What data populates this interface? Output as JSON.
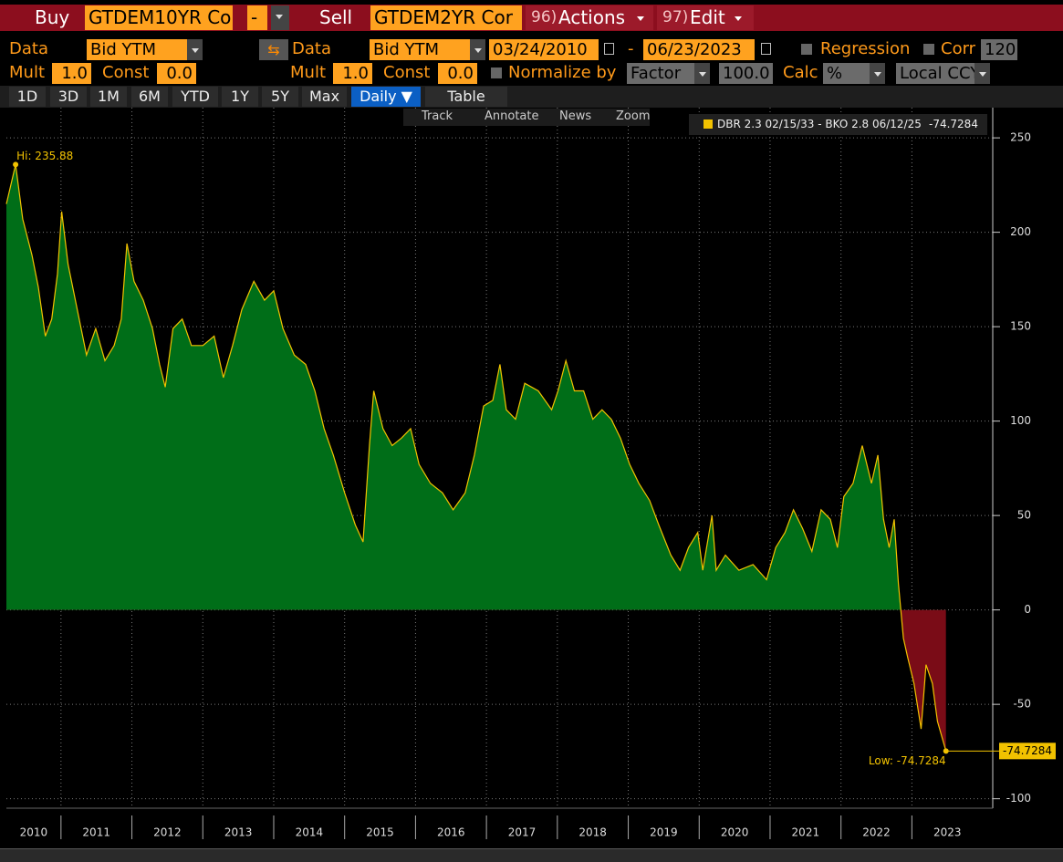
{
  "toolbar": {
    "buy": "Buy",
    "buy_ticker": "GTDEM10YR Co",
    "op": "-",
    "sell": "Sell",
    "sell_ticker": "GTDEM2YR Cor",
    "actions_num": "96)",
    "actions": "Actions",
    "edit_num": "97)",
    "edit": "Edit"
  },
  "row2": {
    "data1": "Data",
    "field1": "Bid YTM",
    "data2": "Data",
    "field2": "Bid YTM",
    "start": "03/24/2010",
    "dash": "-",
    "end": "06/23/2023",
    "regression": "Regression",
    "corr": "Corr",
    "corr_window": "120"
  },
  "row3": {
    "mult1": "Mult",
    "mult1_value": "1.0",
    "const1": "Const",
    "const1_value": "0.0",
    "mult2": "Mult",
    "mult2_value": "1.0",
    "const2": "Const",
    "const2_value": "0.0",
    "normalize": "Normalize by",
    "factor": "Factor",
    "factor_value": "100.0",
    "calc": "Calc",
    "calc_value": "%",
    "ccy": "Local CCY"
  },
  "tabs": [
    "1D",
    "3D",
    "1M",
    "6M",
    "YTD",
    "1Y",
    "5Y",
    "Max",
    "Daily ▼",
    "Table"
  ],
  "chart_tools": [
    "Track",
    "Annotate",
    "News",
    "Zoom"
  ],
  "chart_data": {
    "type": "area",
    "x": [
      2010.23,
      2010.36,
      2010.46,
      2010.59,
      2010.68,
      2010.78,
      2010.87,
      2010.95,
      2011.01,
      2011.1,
      2011.23,
      2011.36,
      2011.49,
      2011.62,
      2011.75,
      2011.85,
      2011.93,
      2012.03,
      2012.16,
      2012.29,
      2012.39,
      2012.47,
      2012.58,
      2012.71,
      2012.84,
      2013.0,
      2013.16,
      2013.29,
      2013.42,
      2013.55,
      2013.72,
      2013.87,
      2014.0,
      2014.13,
      2014.29,
      2014.45,
      2014.58,
      2014.71,
      2014.84,
      2015.0,
      2015.15,
      2015.26,
      2015.35,
      2015.41,
      2015.54,
      2015.67,
      2015.8,
      2015.93,
      2016.05,
      2016.21,
      2016.38,
      2016.53,
      2016.7,
      2016.83,
      2016.96,
      2017.09,
      2017.19,
      2017.28,
      2017.41,
      2017.54,
      2017.73,
      2017.92,
      2018.01,
      2018.12,
      2018.24,
      2018.37,
      2018.5,
      2018.63,
      2018.76,
      2018.89,
      2019.02,
      2019.15,
      2019.3,
      2019.43,
      2019.6,
      2019.73,
      2019.85,
      2019.98,
      2020.05,
      2020.18,
      2020.24,
      2020.37,
      2020.56,
      2020.76,
      2020.95,
      2021.08,
      2021.21,
      2021.33,
      2021.46,
      2021.59,
      2021.72,
      2021.85,
      2021.95,
      2022.04,
      2022.17,
      2022.3,
      2022.43,
      2022.52,
      2022.6,
      2022.68,
      2022.75,
      2022.81,
      2022.88,
      2022.94,
      2023.03,
      2023.13,
      2023.2,
      2023.29,
      2023.36,
      2023.48
    ],
    "series": [
      {
        "name": "DBR 2.3 02/15/33 - BKO 2.8 06/12/25",
        "color": "#f2c200",
        "values": [
          215,
          235.88,
          207,
          188,
          171,
          145,
          154,
          178,
          211,
          183,
          159,
          135,
          149,
          132,
          140,
          154,
          194,
          174,
          164,
          149,
          130,
          118,
          149,
          154,
          140,
          140,
          145,
          123,
          140,
          159,
          174,
          164,
          169,
          149,
          135,
          130,
          116,
          96,
          82,
          62,
          45,
          36,
          87,
          116,
          96,
          87,
          91,
          96,
          77,
          67,
          62,
          53,
          62,
          82,
          108,
          111,
          130,
          106,
          101,
          120,
          116,
          106,
          116,
          132,
          116,
          116,
          101,
          106,
          101,
          91,
          77,
          67,
          58,
          45,
          29,
          21,
          33,
          41,
          21,
          50,
          21,
          29,
          21,
          24,
          16,
          33,
          41,
          53,
          43,
          31,
          53,
          48,
          33,
          60,
          67,
          87,
          67,
          82,
          48,
          33,
          48,
          14,
          -15,
          -25,
          -39,
          -63,
          -29,
          -39,
          -59,
          -74.7284
        ]
      }
    ],
    "fill_above": "#006e18",
    "fill_below": "#7a0c17",
    "xlim": [
      2010.23,
      2024.14
    ],
    "xticks": [
      2010,
      2011,
      2012,
      2013,
      2014,
      2015,
      2016,
      2017,
      2018,
      2019,
      2020,
      2021,
      2022,
      2023
    ],
    "ylim": [
      -105,
      266
    ],
    "yticks": [
      -100,
      -50,
      0,
      50,
      100,
      150,
      200,
      250
    ],
    "grid": true,
    "hi_label": "Hi: 235.88",
    "low_label": "Low: -74.7284",
    "last_label": "-74.7284"
  }
}
